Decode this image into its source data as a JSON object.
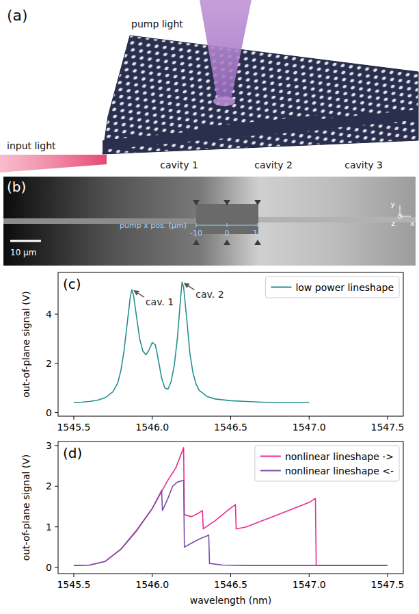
{
  "illustration": {
    "label": "(a)",
    "pump_label": "pump light",
    "input_label": "input light",
    "cavities": [
      "cavity 1",
      "cavity 2",
      "cavity 3"
    ]
  },
  "micrograph": {
    "label": "(b)",
    "scale_bar": "10 µm",
    "axis_labels": [
      "y",
      "x",
      "z"
    ],
    "pump_axis_label": "pump x pos. (µm)",
    "pump_ticks": [
      -10,
      0,
      10
    ]
  },
  "chart_data": [
    {
      "type": "line",
      "panel": "(c)",
      "y_label": "out-of-plane signal (V)",
      "grid": false,
      "xlim": [
        1545.4,
        1547.6
      ],
      "ylim": [
        -0.15,
        5.7
      ],
      "xticks": [
        1545.5,
        {
          "value": 1546,
          "label": "1546.0"
        },
        1546.5,
        {
          "value": 1547,
          "label": "1547.0"
        },
        1547.5
      ],
      "yticks": [
        0,
        2,
        4
      ],
      "legend": "upper right",
      "series": [
        {
          "name": "low power lineshape",
          "color": "#23918e",
          "x": [
            1545.5,
            1545.55,
            1545.6,
            1545.65,
            1545.7,
            1545.75,
            1545.78,
            1545.8,
            1545.82,
            1545.84,
            1545.86,
            1545.87,
            1545.88,
            1545.9,
            1545.92,
            1545.94,
            1545.96,
            1545.98,
            1546.0,
            1546.02,
            1546.04,
            1546.06,
            1546.08,
            1546.1,
            1546.12,
            1546.14,
            1546.16,
            1546.18,
            1546.19,
            1546.2,
            1546.22,
            1546.24,
            1546.26,
            1546.28,
            1546.3,
            1546.35,
            1546.4,
            1546.5,
            1546.6,
            1546.7,
            1546.8,
            1546.9,
            1547.0
          ],
          "values": [
            0.4,
            0.42,
            0.45,
            0.5,
            0.6,
            0.85,
            1.2,
            1.7,
            2.5,
            3.6,
            4.7,
            5.0,
            4.8,
            3.9,
            3.0,
            2.5,
            2.35,
            2.55,
            2.85,
            2.75,
            2.1,
            1.4,
            1.0,
            0.95,
            1.25,
            1.9,
            3.0,
            4.6,
            5.3,
            5.1,
            3.8,
            2.4,
            1.6,
            1.15,
            0.9,
            0.65,
            0.55,
            0.48,
            0.45,
            0.42,
            0.4,
            0.4,
            0.4
          ]
        }
      ],
      "annotations": [
        {
          "text": "cav. 1",
          "x": 1545.87,
          "y": 5.0
        },
        {
          "text": "cav. 2",
          "x": 1546.19,
          "y": 5.3
        }
      ]
    },
    {
      "type": "line",
      "panel": "(d)",
      "y_label": "out-of-plane signal (V)",
      "x_label": "wavelength (nm)",
      "grid": false,
      "xlim": [
        1545.4,
        1547.6
      ],
      "ylim": [
        -0.15,
        3.1
      ],
      "xticks": [
        1545.5,
        {
          "value": 1546,
          "label": "1546.0"
        },
        1546.5,
        {
          "value": 1547,
          "label": "1547.0"
        },
        1547.5
      ],
      "yticks": [
        0,
        1,
        2,
        3
      ],
      "legend": "upper right",
      "series": [
        {
          "name": "nonlinear lineshape ->",
          "color": "#ec2a8c",
          "x": [
            1545.5,
            1545.6,
            1545.7,
            1545.8,
            1545.9,
            1546.0,
            1546.05,
            1546.1,
            1546.15,
            1546.2,
            1546.205,
            1546.25,
            1546.3,
            1546.32,
            1546.325,
            1546.4,
            1546.48,
            1546.53,
            1546.535,
            1546.6,
            1546.7,
            1546.8,
            1546.9,
            1547.0,
            1547.04,
            1547.045,
            1547.2,
            1547.5
          ],
          "values": [
            0.05,
            0.06,
            0.15,
            0.45,
            0.92,
            1.45,
            1.8,
            2.15,
            2.45,
            2.95,
            1.3,
            1.25,
            1.35,
            1.4,
            0.95,
            1.15,
            1.4,
            1.55,
            0.95,
            1.0,
            1.15,
            1.3,
            1.45,
            1.6,
            1.7,
            0.05,
            0.05,
            0.05
          ]
        },
        {
          "name": "nonlinear lineshape <-",
          "color": "#7a4fa6",
          "x": [
            1545.5,
            1545.6,
            1545.7,
            1545.8,
            1545.9,
            1546.0,
            1546.06,
            1546.065,
            1546.1,
            1546.13,
            1546.16,
            1546.2,
            1546.205,
            1546.25,
            1546.3,
            1546.35,
            1546.36,
            1546.365,
            1546.45,
            1546.6,
            1547.0,
            1547.5
          ],
          "values": [
            0.05,
            0.06,
            0.15,
            0.45,
            0.9,
            1.45,
            1.9,
            1.4,
            1.7,
            2.0,
            2.1,
            2.15,
            0.5,
            0.6,
            0.7,
            0.78,
            0.8,
            0.1,
            0.06,
            0.05,
            0.05,
            0.05
          ]
        }
      ]
    }
  ]
}
